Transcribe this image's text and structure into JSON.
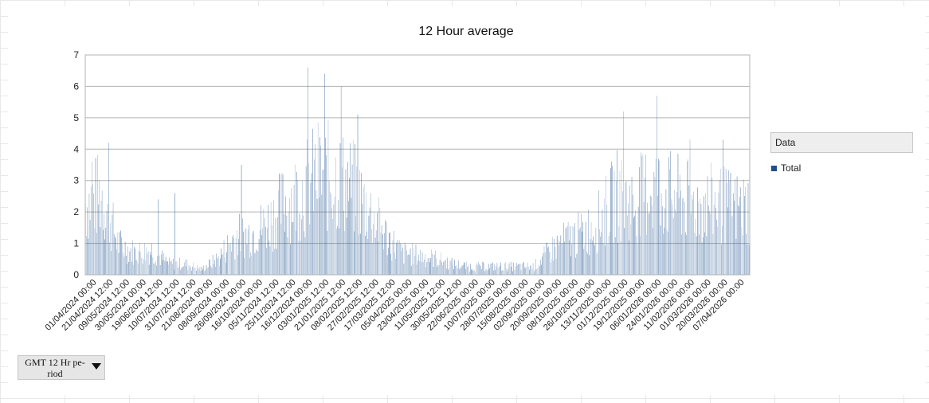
{
  "chart_data": {
    "type": "bar",
    "title": "12 Hour average",
    "xlabel": "",
    "ylabel": "",
    "ylim": [
      0,
      7
    ],
    "yticks": [
      0,
      1,
      2,
      3,
      4,
      5,
      6,
      7
    ],
    "grid": true,
    "legend_position": "right",
    "legend_title": "Data",
    "series": [
      {
        "name": "Total",
        "color": "#2f5f98",
        "profile": [
          [
            "01/04/2024 00:00",
            2.6
          ],
          [
            "21/04/2024 12:00",
            2.9
          ],
          [
            "09/05/2024 12:00",
            1.1
          ],
          [
            "30/05/2024 00:00",
            0.8
          ],
          [
            "19/06/2024 12:00",
            0.9
          ],
          [
            "10/07/2024 12:00",
            0.4
          ],
          [
            "31/07/2024 12:00",
            0.4
          ],
          [
            "21/08/2024 00:00",
            0.2
          ],
          [
            "08/09/2024 00:00",
            0.6
          ],
          [
            "26/09/2024 00:00",
            1.4
          ],
          [
            "16/10/2024 00:00",
            1.5
          ],
          [
            "05/11/2024 12:00",
            1.9
          ],
          [
            "25/11/2024 12:00",
            2.6
          ],
          [
            "16/12/2024 00:00",
            3.0
          ],
          [
            "03/01/2025 12:00",
            3.6
          ],
          [
            "21/01/2025 12:00",
            3.5
          ],
          [
            "08/02/2025 12:00",
            3.2
          ],
          [
            "27/02/2025 12:00",
            2.4
          ],
          [
            "17/03/2025 12:00",
            1.5
          ],
          [
            "05/04/2025 00:00",
            0.8
          ],
          [
            "23/04/2025 00:00",
            0.7
          ],
          [
            "11/05/2025 12:00",
            0.6
          ],
          [
            "30/05/2025 12:00",
            0.4
          ],
          [
            "22/06/2025 00:00",
            0.3
          ],
          [
            "10/07/2025 00:00",
            0.3
          ],
          [
            "28/07/2025 00:00",
            0.3
          ],
          [
            "15/08/2025 00:00",
            0.3
          ],
          [
            "02/09/2025 00:00",
            0.3
          ],
          [
            "20/09/2025 00:00",
            0.9
          ],
          [
            "08/10/2025 00:00",
            1.3
          ],
          [
            "26/10/2025 00:00",
            1.5
          ],
          [
            "13/11/2025 00:00",
            2.0
          ],
          [
            "01/12/2025 00:00",
            2.9
          ],
          [
            "19/12/2025 00:00",
            2.5
          ],
          [
            "06/01/2026 00:00",
            3.2
          ],
          [
            "24/01/2026 00:00",
            2.9
          ],
          [
            "11/02/2026 00:00",
            2.7
          ],
          [
            "01/03/2026 00:00",
            2.5
          ],
          [
            "20/03/2026 00:00",
            2.6
          ],
          [
            "07/04/2026 00:00",
            2.4
          ]
        ],
        "peaks": [
          [
            "01/04/2024 00:00",
            3.6
          ],
          [
            "21/04/2024 12:00",
            4.2
          ],
          [
            "19/06/2024 12:00",
            2.4
          ],
          [
            "10/07/2024 12:00",
            2.6
          ],
          [
            "26/09/2024 00:00",
            3.5
          ],
          [
            "16/12/2024 00:00",
            6.6
          ],
          [
            "03/01/2025 12:00",
            6.4
          ],
          [
            "21/01/2025 12:00",
            6.0
          ],
          [
            "08/02/2025 12:00",
            5.1
          ],
          [
            "01/12/2025 00:00",
            5.2
          ],
          [
            "06/01/2026 00:00",
            5.7
          ],
          [
            "11/02/2026 00:00",
            4.3
          ],
          [
            "20/03/2026 00:00",
            4.3
          ]
        ]
      }
    ],
    "categories": [
      "01/04/2024 00:00",
      "21/04/2024 12:00",
      "09/05/2024 12:00",
      "30/05/2024 00:00",
      "19/06/2024 12:00",
      "10/07/2024 12:00",
      "31/07/2024 12:00",
      "21/08/2024 00:00",
      "08/09/2024 00:00",
      "26/09/2024 00:00",
      "16/10/2024 00:00",
      "05/11/2024 12:00",
      "25/11/2024 12:00",
      "16/12/2024 00:00",
      "03/01/2025 12:00",
      "21/01/2025 12:00",
      "08/02/2025 12:00",
      "27/02/2025 12:00",
      "17/03/2025 12:00",
      "05/04/2025 00:00",
      "23/04/2025 00:00",
      "11/05/2025 12:00",
      "30/05/2025 12:00",
      "22/06/2025 00:00",
      "10/07/2025 00:00",
      "28/07/2025 00:00",
      "15/08/2025 00:00",
      "02/09/2025 00:00",
      "20/09/2025 00:00",
      "08/10/2025 00:00",
      "26/10/2025 00:00",
      "13/11/2025 00:00",
      "01/12/2025 00:00",
      "19/12/2025 00:00",
      "06/01/2026 00:00",
      "24/01/2026 00:00",
      "11/02/2026 00:00",
      "01/03/2026 00:00",
      "20/03/2026 00:00",
      "07/04/2026 00:00"
    ]
  },
  "legend": {
    "title": "Data",
    "entries": [
      {
        "label": "Total",
        "color": "#1f4f8f"
      }
    ]
  },
  "field_button": {
    "label": "GMT 12 Hr pe-riod",
    "icon": "dropdown-arrow-icon"
  }
}
